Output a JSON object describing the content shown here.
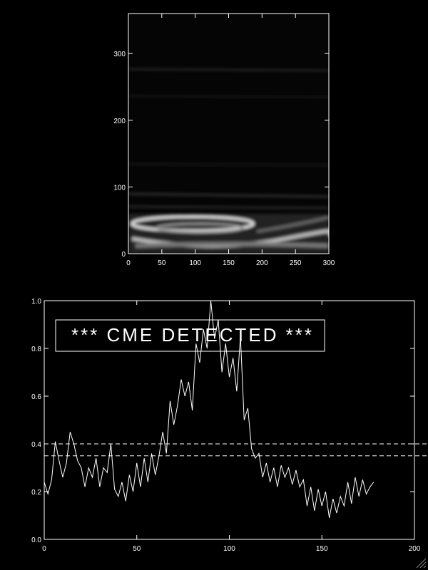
{
  "chart_data": [
    {
      "type": "image",
      "xlim": [
        0,
        300
      ],
      "xticks": [
        0,
        50,
        100,
        150,
        200,
        250,
        300
      ],
      "ylim": [
        0,
        360
      ],
      "yticks": [
        0,
        100,
        200,
        300
      ]
    },
    {
      "type": "line",
      "xlim": [
        0,
        200
      ],
      "xticks": [
        0,
        50,
        100,
        150,
        200
      ],
      "ylim": [
        0,
        1.0
      ],
      "yticks": [
        {
          "value": 0,
          "label": "0.0"
        },
        {
          "value": 0.2,
          "label": "0.2"
        },
        {
          "value": 0.4,
          "label": "0.4"
        },
        {
          "value": 0.6,
          "label": "0.6"
        },
        {
          "value": 0.8,
          "label": "0.8"
        },
        {
          "value": 1.0,
          "label": "1.0"
        }
      ],
      "thresholds": [
        0.4,
        0.35
      ],
      "annotation": "*** CME DETECTED ***",
      "series": [
        {
          "color": "#ffffff",
          "x": [
            0,
            2,
            4,
            6,
            8,
            10,
            12,
            14,
            16,
            18,
            20,
            22,
            24,
            26,
            28,
            30,
            32,
            34,
            36,
            38,
            40,
            42,
            44,
            46,
            48,
            50,
            52,
            54,
            56,
            58,
            60,
            62,
            64,
            66,
            68,
            70,
            72,
            74,
            76,
            78,
            80,
            82,
            84,
            86,
            88,
            90,
            92,
            94,
            96,
            98,
            100,
            102,
            104,
            106,
            108,
            110,
            112,
            114,
            116,
            118,
            120,
            122,
            124,
            126,
            128,
            130,
            132,
            134,
            136,
            138,
            140,
            142,
            144,
            146,
            148,
            150,
            152,
            154,
            156,
            158,
            160,
            162,
            164,
            166,
            168,
            170,
            172,
            174,
            176,
            178
          ],
          "values": [
            0.24,
            0.19,
            0.25,
            0.41,
            0.33,
            0.26,
            0.32,
            0.45,
            0.4,
            0.33,
            0.3,
            0.22,
            0.3,
            0.26,
            0.34,
            0.22,
            0.3,
            0.28,
            0.4,
            0.21,
            0.18,
            0.24,
            0.16,
            0.27,
            0.2,
            0.32,
            0.22,
            0.34,
            0.24,
            0.36,
            0.27,
            0.35,
            0.45,
            0.36,
            0.58,
            0.48,
            0.56,
            0.67,
            0.6,
            0.66,
            0.54,
            0.82,
            0.74,
            0.88,
            0.8,
            1.0,
            0.84,
            0.92,
            0.7,
            0.82,
            0.68,
            0.76,
            0.62,
            0.85,
            0.5,
            0.55,
            0.38,
            0.34,
            0.36,
            0.26,
            0.32,
            0.24,
            0.3,
            0.22,
            0.31,
            0.26,
            0.3,
            0.23,
            0.29,
            0.22,
            0.25,
            0.14,
            0.22,
            0.12,
            0.21,
            0.14,
            0.2,
            0.09,
            0.17,
            0.11,
            0.18,
            0.14,
            0.24,
            0.15,
            0.26,
            0.18,
            0.25,
            0.19,
            0.22,
            0.24
          ]
        }
      ]
    }
  ]
}
